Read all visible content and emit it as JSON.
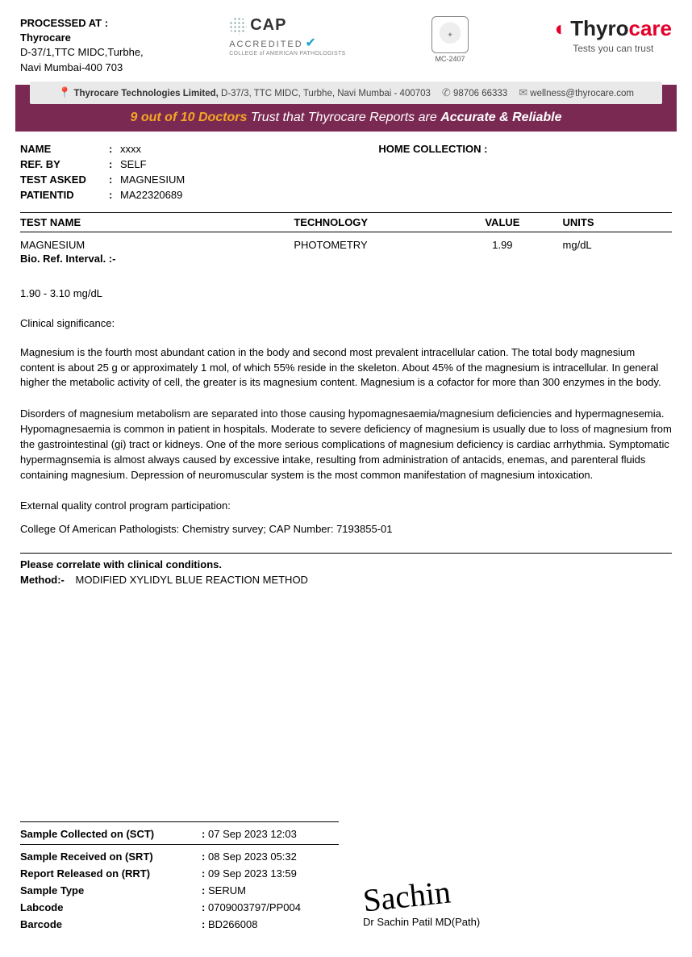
{
  "processed": {
    "title": "PROCESSED AT :",
    "org": "Thyrocare",
    "addr1": "D-37/1,TTC MIDC,Turbhe,",
    "addr2": "Navi Mumbai-400 703"
  },
  "cap": {
    "name": "CAP",
    "acc": "ACCREDITED",
    "sub": "COLLEGE of AMERICAN PATHOLOGISTS"
  },
  "nabl": {
    "code": "MC-2407"
  },
  "brand": {
    "thy": "Thyro",
    "care": "care",
    "tag": "Tests you can trust"
  },
  "contact": {
    "addr_label": "Thyrocare Technologies Limited,",
    "addr": " D-37/3, TTC MIDC, Turbhe, Navi Mumbai - 400703",
    "phone": "98706 66333",
    "email": "wellness@thyrocare.com"
  },
  "trust": {
    "lead": "9 out of 10 Doctors",
    "mid": " Trust that Thyrocare Reports are ",
    "tail": "Accurate & Reliable"
  },
  "patient": {
    "name_label": "NAME",
    "name": "xxxx",
    "ref_label": "REF. BY",
    "ref": "SELF",
    "test_label": "TEST ASKED",
    "test": "MAGNESIUM",
    "pid_label": "PATIENTID",
    "pid": "MA22320689",
    "home_label": "HOME COLLECTION :",
    "home": ""
  },
  "cols": {
    "test": "TEST NAME",
    "tech": "TECHNOLOGY",
    "val": "VALUE",
    "unit": "UNITS"
  },
  "row": {
    "test": "MAGNESIUM",
    "tech": "PHOTOMETRY",
    "val": "1.99",
    "unit": "mg/dL"
  },
  "bio_label": "Bio. Ref. Interval. :-",
  "range": "1.90 - 3.10 mg/dL",
  "clin_title": "Clinical significance:",
  "para1": "Magnesium is the fourth most abundant cation in the body and second most prevalent intracellular cation. The total body magnesium content is about 25 g or approximately 1 mol, of which 55% reside in the skeleton. About 45% of the magnesium is intracellular. In general higher the metabolic activity of cell, the greater is its magnesium content. Magnesium is a cofactor for more than 300 enzymes in the body.",
  "para2": "Disorders of magnesium metabolism are separated into those causing hypomagnesaemia/magnesium deficiencies and hypermagnesemia. Hypomagnesaemia is common in patient in hospitals. Moderate to severe deficiency of magnesium is usually due to loss of magnesium from the gastrointestinal (gi) tract or kidneys. One of the more serious complications of magnesium deficiency is cardiac arrhythmia. Symptomatic hypermagnsemia is almost always caused by excessive intake, resulting from administration of antacids, enemas, and parenteral fluids containing magnesium. Depression of neuromuscular system is the most common manifestation of magnesium intoxication.",
  "qc": "External quality control program participation:",
  "capline": "College Of American Pathologists: Chemistry survey; CAP Number: 7193855-01",
  "correlate": "Please correlate with clinical conditions.",
  "method_label": "Method:-",
  "method": "MODIFIED XYLIDYL BLUE REACTION METHOD",
  "meta": {
    "sct_l": "Sample Collected on (SCT)",
    "sct": "07 Sep 2023 12:03",
    "srt_l": "Sample Received on (SRT)",
    "srt": " 08 Sep 2023 05:32",
    "rrt_l": "Report  Released on (RRT)",
    "rrt": " 09 Sep 2023 13:59",
    "stype_l": "Sample Type",
    "stype": "SERUM",
    "lab_l": "Labcode",
    "lab": "0709003797/PP004",
    "bc_l": "Barcode",
    "bc": "BD266008"
  },
  "sign": {
    "sig": "Sachin",
    "name": "Dr Sachin Patil MD(Path)"
  }
}
